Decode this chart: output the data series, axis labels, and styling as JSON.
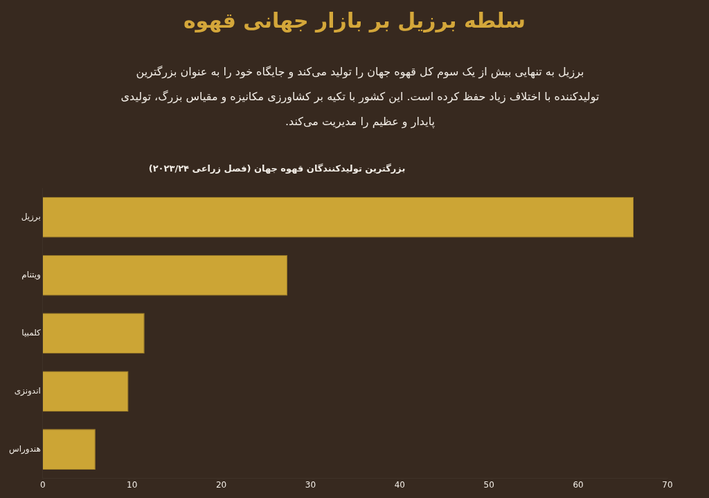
{
  "chart_data": {
    "type": "bar",
    "orientation": "horizontal",
    "title": "سلطه برزیل بر بازار جهانی قهوه",
    "subtitle": "برزیل به تنهایی بیش از یک سوم کل قهوه جهان را تولید می‌کند و جایگاه خود را به عنوان بزرگترین تولیدکننده با اختلاف زیاد حفظ کرده است. این کشور با تکیه بر کشاورزی مکانیزه و مقیاس بزرگ، تولیدی پایدار و عظیم را مدیریت می‌کند.",
    "annotations": [
      "بزرگترین تولیدکنندگان قهوه جهان (فصل زراعی ۲۰۲۳/۲۴)"
    ],
    "categories": [
      "برزیل",
      "ویتنام",
      "کلمبیا",
      "اندونزی",
      "هندوراس"
    ],
    "values": [
      66.2,
      27.4,
      11.4,
      9.6,
      5.9
    ],
    "color": "#cca535",
    "xlim": [
      0,
      70
    ],
    "xticks": [
      0,
      10,
      20,
      30,
      40,
      50,
      60,
      70
    ],
    "grid": false,
    "legend": false
  }
}
